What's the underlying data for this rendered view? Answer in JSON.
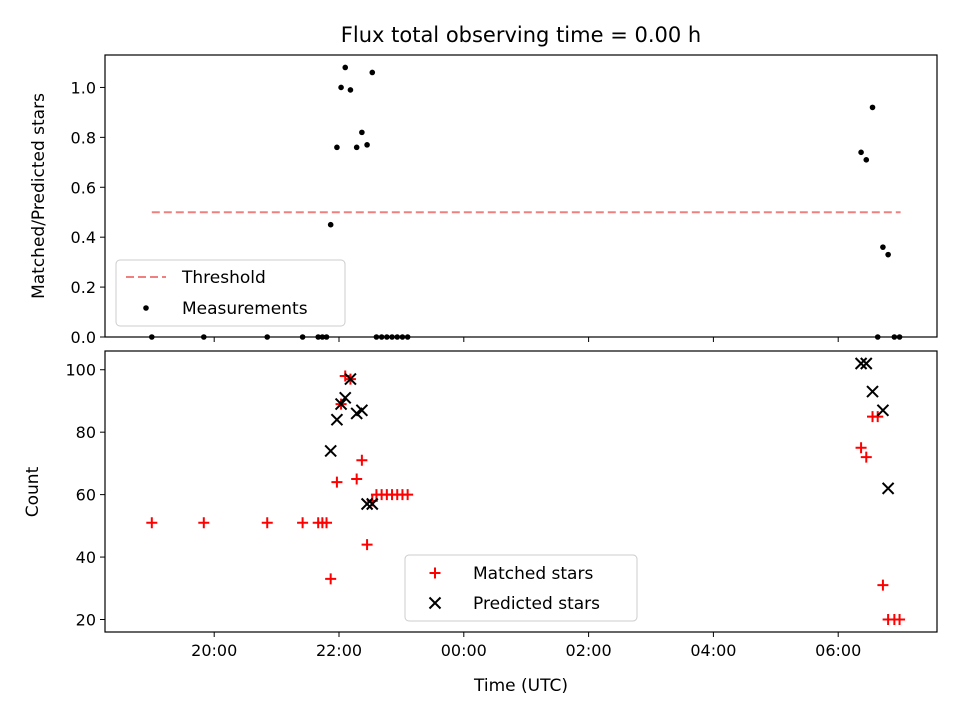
{
  "chart_data": [
    {
      "type": "scatter",
      "title": "Flux total observing time = 0.00 h",
      "xlabel": "",
      "ylabel": "Matched/Predicted stars",
      "xlim": [
        "18:15",
        "07:35"
      ],
      "ylim": [
        0,
        1.13
      ],
      "yticks": [
        "0.0",
        "0.2",
        "0.4",
        "0.6",
        "0.8",
        "1.0"
      ],
      "grid": false,
      "legend_position": "lower-left",
      "series": [
        {
          "name": "Threshold",
          "style": "dashed-line",
          "color": "#f08080",
          "points": [
            [
              "19:00",
              0.5
            ],
            [
              "07:00",
              0.5
            ]
          ]
        },
        {
          "name": "Measurements",
          "style": "dot",
          "color": "#000000",
          "points": [
            [
              "19:00",
              0.0
            ],
            [
              "19:50",
              0.0
            ],
            [
              "20:51",
              0.0
            ],
            [
              "21:25",
              0.0
            ],
            [
              "21:40",
              0.0
            ],
            [
              "21:44",
              0.0
            ],
            [
              "21:48",
              0.0
            ],
            [
              "21:52",
              0.45
            ],
            [
              "21:58",
              0.76
            ],
            [
              "22:02",
              1.0
            ],
            [
              "22:06",
              1.08
            ],
            [
              "22:11",
              0.99
            ],
            [
              "22:17",
              0.76
            ],
            [
              "22:22",
              0.82
            ],
            [
              "22:27",
              0.77
            ],
            [
              "22:32",
              1.06
            ],
            [
              "22:36",
              0.0
            ],
            [
              "22:41",
              0.0
            ],
            [
              "22:46",
              0.0
            ],
            [
              "22:51",
              0.0
            ],
            [
              "22:56",
              0.0
            ],
            [
              "23:01",
              0.0
            ],
            [
              "23:06",
              0.0
            ],
            [
              "06:22",
              0.74
            ],
            [
              "06:27",
              0.71
            ],
            [
              "06:33",
              0.92
            ],
            [
              "06:38",
              0.0
            ],
            [
              "06:43",
              0.36
            ],
            [
              "06:48",
              0.33
            ],
            [
              "06:54",
              0.0
            ],
            [
              "06:59",
              0.0
            ]
          ]
        }
      ]
    },
    {
      "type": "scatter",
      "title": "",
      "xlabel": "Time (UTC)",
      "ylabel": "Count",
      "xlim": [
        "18:15",
        "07:35"
      ],
      "ylim": [
        16,
        106
      ],
      "xticks": [
        "20:00",
        "22:00",
        "00:00",
        "02:00",
        "04:00",
        "06:00"
      ],
      "yticks": [
        "20",
        "40",
        "60",
        "80",
        "100"
      ],
      "grid": false,
      "legend_position": "lower-center",
      "series": [
        {
          "name": "Matched stars",
          "marker": "plus",
          "color": "#ff0000",
          "points": [
            [
              "19:00",
              51
            ],
            [
              "19:50",
              51
            ],
            [
              "20:51",
              51
            ],
            [
              "21:25",
              51
            ],
            [
              "21:40",
              51
            ],
            [
              "21:44",
              51
            ],
            [
              "21:48",
              51
            ],
            [
              "21:52",
              33
            ],
            [
              "21:58",
              64
            ],
            [
              "22:02",
              89
            ],
            [
              "22:06",
              98
            ],
            [
              "22:11",
              97
            ],
            [
              "22:17",
              65
            ],
            [
              "22:22",
              71
            ],
            [
              "22:27",
              44
            ],
            [
              "22:32",
              58
            ],
            [
              "22:36",
              60
            ],
            [
              "22:41",
              60
            ],
            [
              "22:46",
              60
            ],
            [
              "22:51",
              60
            ],
            [
              "22:56",
              60
            ],
            [
              "23:01",
              60
            ],
            [
              "23:06",
              60
            ],
            [
              "06:22",
              75
            ],
            [
              "06:27",
              72
            ],
            [
              "06:33",
              85
            ],
            [
              "06:38",
              85
            ],
            [
              "06:43",
              31
            ],
            [
              "06:48",
              20
            ],
            [
              "06:54",
              20
            ],
            [
              "06:59",
              20
            ]
          ]
        },
        {
          "name": "Predicted stars",
          "marker": "x",
          "color": "#000000",
          "points": [
            [
              "21:52",
              74
            ],
            [
              "21:58",
              84
            ],
            [
              "22:02",
              89
            ],
            [
              "22:06",
              91
            ],
            [
              "22:11",
              97
            ],
            [
              "22:17",
              86
            ],
            [
              "22:22",
              87
            ],
            [
              "22:27",
              57
            ],
            [
              "22:32",
              57
            ],
            [
              "06:22",
              102
            ],
            [
              "06:27",
              102
            ],
            [
              "06:33",
              93
            ],
            [
              "06:43",
              87
            ],
            [
              "06:48",
              62
            ]
          ]
        }
      ]
    }
  ]
}
